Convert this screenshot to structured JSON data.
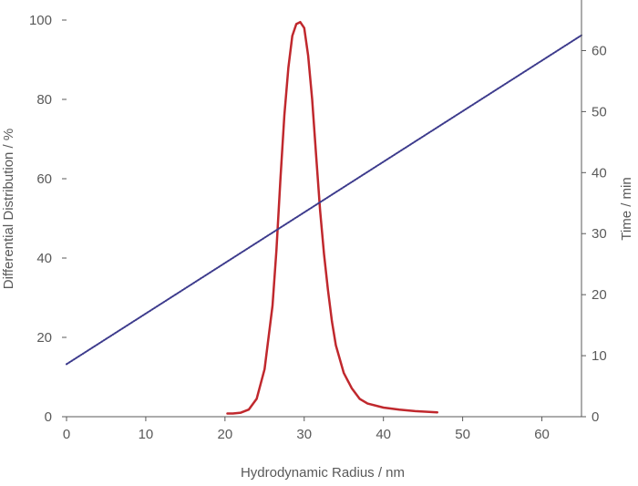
{
  "chart_data": {
    "type": "line",
    "title": "",
    "xlabel": "Hydrodynamic Radius / nm",
    "ylabel_left": "Differential Distribution / %",
    "ylabel_right": "Time / min",
    "xlim": [
      0,
      65
    ],
    "ylim_left": [
      0,
      100
    ],
    "ylim_right": [
      0,
      65
    ],
    "x_ticks": [
      "0",
      "10",
      "20",
      "30",
      "40",
      "50",
      "60"
    ],
    "y_left_ticks": [
      "0",
      "20",
      "40",
      "60",
      "80",
      "100"
    ],
    "y_right_ticks": [
      "0",
      "10",
      "20",
      "30",
      "40",
      "50",
      "60"
    ],
    "grid": false,
    "legend": "none",
    "series": [
      {
        "axis": "left",
        "color": "#c0282d",
        "style": "solid",
        "x": [
          20.3,
          21,
          22,
          23,
          24,
          25,
          26,
          26.5,
          27,
          27.5,
          28,
          28.5,
          29,
          29.5,
          30,
          30.5,
          31,
          31.5,
          32,
          32.5,
          33,
          33.5,
          34,
          35,
          36,
          37,
          38,
          40,
          42,
          44,
          46.8
        ],
        "y": [
          0.8,
          0.8,
          1.0,
          1.8,
          4.5,
          12,
          28,
          42,
          60,
          76,
          88,
          96,
          99,
          99.5,
          98,
          91,
          80,
          66,
          52,
          41,
          32,
          24,
          18,
          11,
          7.2,
          4.5,
          3.3,
          2.3,
          1.8,
          1.4,
          1.1
        ]
      },
      {
        "axis": "right",
        "color": "#3c3a8c",
        "style": "dotted",
        "x": [
          0,
          65
        ],
        "y": [
          8.6,
          62.5
        ]
      }
    ]
  }
}
